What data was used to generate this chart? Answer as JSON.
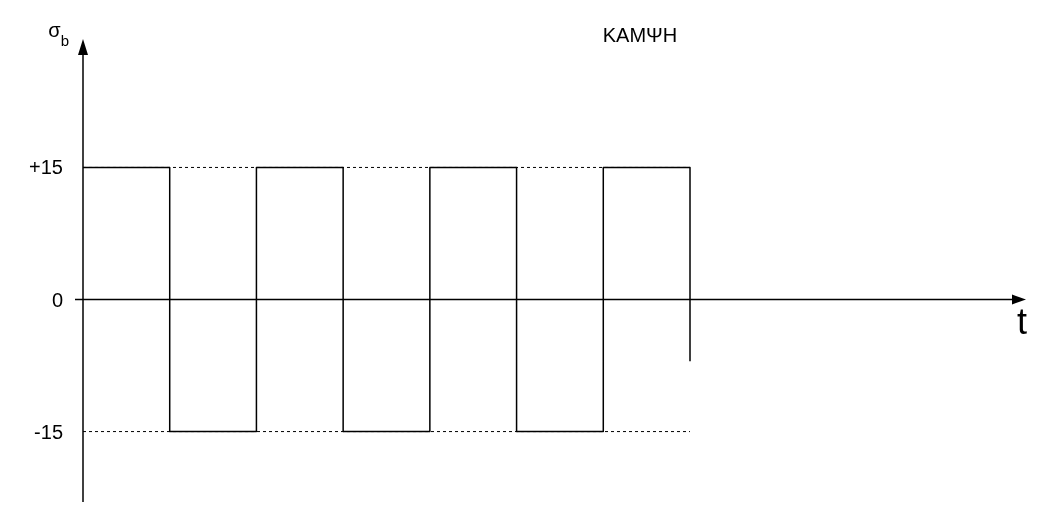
{
  "chart_data": {
    "type": "step",
    "title": "ΚΑΜΨΗ",
    "annotations": [
      "t"
    ],
    "ylabel": "σ$_{b}$",
    "categories": [
      null,
      null,
      null,
      null,
      null,
      null,
      null,
      null
    ],
    "series": [
      {
        "color": "#000000",
        "values": [
          15,
          -15,
          15,
          -15,
          15,
          -15,
          15,
          -7
        ]
      }
    ],
    "ylim": [
      -23,
      28
    ],
    "yticks": [
      {
        "value": 15,
        "label": "+15"
      },
      0,
      -15
    ],
    "ref_lines": [
      {
        "axis": "y",
        "value": 15,
        "line_style": "dotted",
        "color": "#000000"
      },
      {
        "axis": "y",
        "value": -15,
        "line_style": "dotted",
        "color": "#000000"
      }
    ],
    "tick_labels": "y"
  }
}
